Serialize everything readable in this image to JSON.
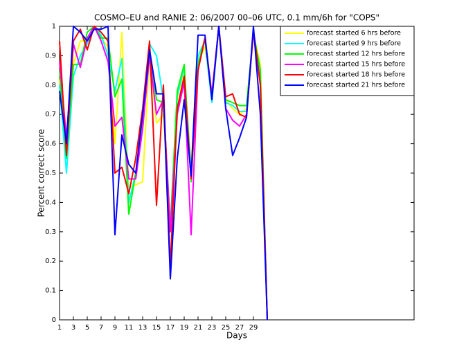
{
  "chart_data": {
    "type": "line",
    "title": "COSMO–EU and RANIE 2: 06/2007 00–06 UTC, 0.1 mm/6h for \"COPS\"",
    "x_label": "Days",
    "y_label": "Percent correct score",
    "x": [
      1,
      2,
      3,
      4,
      5,
      6,
      7,
      8,
      9,
      10,
      11,
      12,
      13,
      14,
      15,
      16,
      17,
      18,
      19,
      20,
      21,
      22,
      23,
      24,
      25,
      26,
      27,
      28,
      29,
      30,
      31
    ],
    "xlim": [
      1,
      52.2
    ],
    "xticks": [
      1,
      3,
      5,
      7,
      9,
      11,
      13,
      15,
      17,
      19,
      21,
      23,
      25,
      27,
      29
    ],
    "ylim": [
      0,
      1
    ],
    "yticks": [
      0,
      0.1,
      0.2,
      0.3,
      0.4,
      0.5,
      0.6,
      0.7,
      0.8,
      0.9,
      1
    ],
    "grid": false,
    "legend": "upper right",
    "series": [
      {
        "name": "forecast started 6 hrs before",
        "color": "#ffff00",
        "values": [
          0.82,
          0.55,
          0.87,
          0.95,
          0.95,
          1.0,
          0.96,
          0.93,
          0.6,
          0.98,
          0.45,
          0.46,
          0.47,
          0.9,
          0.67,
          0.7,
          0.3,
          0.72,
          0.85,
          0.52,
          0.88,
          0.93,
          0.76,
          1.0,
          0.75,
          0.72,
          0.7,
          0.72,
          0.97,
          0.87,
          0
        ]
      },
      {
        "name": "forecast started 9 hrs before",
        "color": "#00ffff",
        "values": [
          0.8,
          0.5,
          0.83,
          0.9,
          0.94,
          1.0,
          0.97,
          0.9,
          0.78,
          0.89,
          0.4,
          0.5,
          0.67,
          0.94,
          0.9,
          0.75,
          0.3,
          0.76,
          0.86,
          0.5,
          0.9,
          0.95,
          0.74,
          1.0,
          0.74,
          0.73,
          0.71,
          0.71,
          0.98,
          0.82,
          0
        ]
      },
      {
        "name": "forecast started 12 hrs before",
        "color": "#00ff00",
        "values": [
          0.85,
          0.55,
          0.87,
          0.87,
          0.98,
          1.0,
          0.96,
          0.96,
          0.76,
          0.82,
          0.36,
          0.5,
          0.68,
          0.92,
          0.75,
          0.74,
          0.32,
          0.78,
          0.87,
          0.47,
          0.87,
          0.96,
          0.76,
          1.0,
          0.75,
          0.74,
          0.73,
          0.73,
          0.98,
          0.85,
          0
        ]
      },
      {
        "name": "forecast started 15 hrs before",
        "color": "#ff00ff",
        "values": [
          0.88,
          0.62,
          0.94,
          0.86,
          0.96,
          1.0,
          0.95,
          0.88,
          0.66,
          0.69,
          0.48,
          0.48,
          0.65,
          0.9,
          0.7,
          0.75,
          0.3,
          0.7,
          0.81,
          0.29,
          0.85,
          0.96,
          0.77,
          1.0,
          0.72,
          0.68,
          0.66,
          0.7,
          0.98,
          0.8,
          0
        ]
      },
      {
        "name": "forecast started 18 hrs before",
        "color": "#ff0000",
        "values": [
          0.95,
          0.56,
          0.95,
          0.99,
          0.92,
          1.0,
          0.98,
          0.95,
          0.5,
          0.52,
          0.43,
          0.55,
          0.72,
          0.95,
          0.39,
          0.8,
          0.18,
          0.72,
          0.83,
          0.48,
          0.85,
          0.96,
          0.76,
          1.0,
          0.76,
          0.77,
          0.7,
          0.69,
          0.99,
          0.8,
          0
        ]
      },
      {
        "name": "forecast started 21 hrs before",
        "color": "#0000ff",
        "values": [
          0.78,
          0.6,
          1.0,
          0.98,
          0.95,
          0.99,
          0.99,
          1.0,
          0.29,
          0.63,
          0.53,
          0.5,
          0.7,
          0.92,
          0.77,
          0.77,
          0.14,
          0.55,
          0.75,
          0.49,
          0.97,
          0.97,
          0.75,
          1.0,
          0.72,
          0.56,
          0.62,
          0.69,
          1.0,
          0.7,
          0
        ]
      }
    ]
  }
}
